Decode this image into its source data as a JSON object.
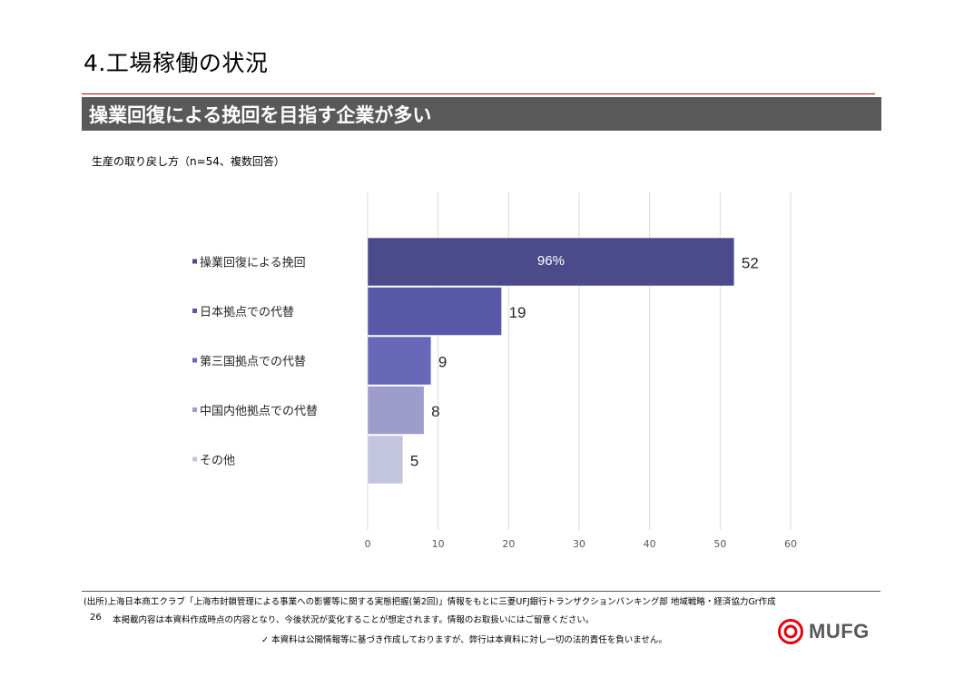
{
  "slide": {
    "title": "4.工場稼働の状況",
    "banner": "操業回復による挽回を目指す企業が多い",
    "chart_subtitle": "生産の取り戻し方（n=54、複数回答）"
  },
  "chart_data": {
    "type": "bar",
    "orientation": "horizontal",
    "categories": [
      "操業回復による挽回",
      "日本拠点での代替",
      "第三国拠点での代替",
      "中国内他拠点での代替",
      "その他"
    ],
    "values": [
      52,
      19,
      9,
      8,
      5
    ],
    "bar_colors": [
      "#4b4b8c",
      "#5858a8",
      "#6868b8",
      "#9e9ccb",
      "#c3c4df"
    ],
    "inner_label": "96%",
    "xticks": [
      0,
      10,
      20,
      30,
      40,
      50,
      60
    ],
    "xlim": [
      0,
      60
    ],
    "grid": true,
    "legend_markers": true
  },
  "footer": {
    "source": "(出所)上海日本商工クラブ「上海市封鎖管理による事業への影響等に関する実態把握(第2回)」情報をもとに三菱UFJ銀行トランザクションバンキング部 地域戦略・経済協力Gr作成",
    "page_number": "26",
    "disclaimer_1": "本掲載内容は本資料作成時点の内容となり、今後状況が変化することが想定されます。情報のお取扱いにはご留意ください。",
    "disclaimer_2": "✓ 本資料は公開情報等に基づき作成しておりますが、弊行は本資料に対し一切の法的責任を負いません。"
  },
  "logo": {
    "text": "MUFG",
    "color": "#e60012"
  }
}
